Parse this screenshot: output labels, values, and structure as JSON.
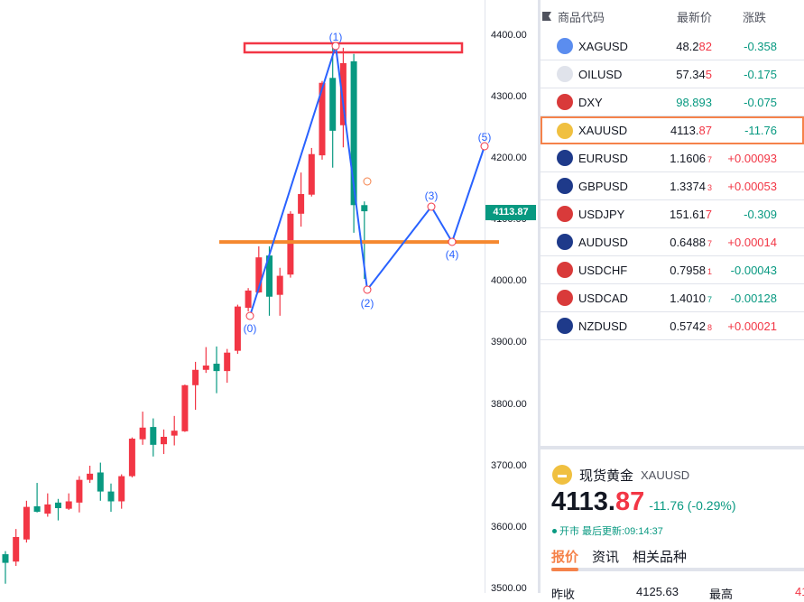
{
  "chart_data": {
    "type": "candlestick",
    "y_ticks": [
      "4400.00",
      "4300.00",
      "4200.00",
      "4100.00",
      "4000.00",
      "3900.00",
      "3800.00",
      "3700.00",
      "3600.00",
      "3500.00"
    ],
    "ylim": [
      3500,
      4400
    ],
    "up_color": "#f23645",
    "down_color": "#089981",
    "candles": [
      [
        3557,
        3543,
        3562,
        3509
      ],
      [
        3545,
        3585,
        3598,
        3538
      ],
      [
        3581,
        3634,
        3644,
        3576
      ],
      [
        3635,
        3626,
        3673,
        3625
      ],
      [
        3623,
        3638,
        3656,
        3618
      ],
      [
        3641,
        3632,
        3647,
        3612
      ],
      [
        3631,
        3643,
        3656,
        3629
      ],
      [
        3641,
        3678,
        3684,
        3625
      ],
      [
        3678,
        3688,
        3701,
        3673
      ],
      [
        3690,
        3659,
        3706,
        3644
      ],
      [
        3659,
        3643,
        3672,
        3626
      ],
      [
        3643,
        3684,
        3687,
        3631
      ],
      [
        3684,
        3745,
        3747,
        3682
      ],
      [
        3744,
        3763,
        3789,
        3735
      ],
      [
        3764,
        3735,
        3778,
        3716
      ],
      [
        3736,
        3748,
        3760,
        3720
      ],
      [
        3750,
        3758,
        3782,
        3734
      ],
      [
        3757,
        3832,
        3833,
        3756
      ],
      [
        3832,
        3857,
        3870,
        3792
      ],
      [
        3857,
        3864,
        3894,
        3852
      ],
      [
        3867,
        3855,
        3895,
        3819
      ],
      [
        3855,
        3885,
        3891,
        3836
      ],
      [
        3888,
        3960,
        3963,
        3883
      ],
      [
        3958,
        3986,
        3990,
        3952
      ],
      [
        3983,
        4040,
        4058,
        3982
      ],
      [
        4043,
        3976,
        4058,
        3945
      ],
      [
        3979,
        4010,
        4023,
        3945
      ],
      [
        4012,
        4111,
        4115,
        4007
      ],
      [
        4111,
        4143,
        4178,
        4090
      ],
      [
        4142,
        4208,
        4218,
        4139
      ],
      [
        4206,
        4324,
        4327,
        4199
      ],
      [
        4332,
        4246,
        4381,
        4186
      ],
      [
        4255,
        4356,
        4381,
        4219
      ],
      [
        4359,
        4125,
        4371,
        4080
      ],
      [
        4125,
        4115,
        4131,
        4005
      ]
    ],
    "current_price": "4113.87",
    "support_level": 4065,
    "wave_labels": [
      "(0)",
      "(1)",
      "(2)",
      "(3)",
      "(4)",
      "(5)"
    ]
  },
  "watchlist": {
    "headers": {
      "symbol": "商品代码",
      "price": "最新价",
      "change": "涨跌"
    },
    "rows": [
      {
        "symbol": "XAGUSD",
        "main": "48.2",
        "tail": "82",
        "small": false,
        "change": "-0.358",
        "dir": "down",
        "icon": "silver-icon",
        "ic": "#5b8def"
      },
      {
        "symbol": "OILUSD",
        "main": "57.34",
        "tail": "5",
        "small": false,
        "change": "-0.175",
        "dir": "down",
        "icon": "oil-icon",
        "ic": "#e0e3eb"
      },
      {
        "symbol": "DXY",
        "main": "98.893",
        "tail": "",
        "small": false,
        "change": "-0.075",
        "dir": "down",
        "icon": "us-flag-icon",
        "ic": "#d93a3a",
        "price_color": "#089981"
      },
      {
        "symbol": "XAUUSD",
        "main": "4113.",
        "tail": "87",
        "small": false,
        "change": "-11.76",
        "dir": "down",
        "icon": "gold-icon",
        "ic": "#f0c040",
        "selected": true
      },
      {
        "symbol": "EURUSD",
        "main": "1.1606",
        "tail": "7",
        "small": true,
        "change": "+0.00093",
        "dir": "up",
        "icon": "eu-flag-icon",
        "ic": "#1e3a8a",
        "cut": "-"
      },
      {
        "symbol": "GBPUSD",
        "main": "1.3374",
        "tail": "3",
        "small": true,
        "change": "+0.00053",
        "dir": "up",
        "icon": "uk-flag-icon",
        "ic": "#1e3a8a",
        "cut": "-"
      },
      {
        "symbol": "USDJPY",
        "main": "151.61",
        "tail": "7",
        "small": false,
        "change": "-0.309",
        "dir": "down",
        "icon": "jp-flag-icon",
        "ic": "#d93a3a"
      },
      {
        "symbol": "AUDUSD",
        "main": "0.6488",
        "tail": "7",
        "small": true,
        "change": "+0.00014",
        "dir": "up",
        "icon": "au-flag-icon",
        "ic": "#1e3a8a",
        "cut": "-"
      },
      {
        "symbol": "USDCHF",
        "main": "0.7958",
        "tail": "1",
        "small": true,
        "change": "-0.00043",
        "dir": "down",
        "icon": "ch-flag-icon",
        "ic": "#d93a3a"
      },
      {
        "symbol": "USDCAD",
        "main": "1.4010",
        "tail": "7",
        "small": true,
        "change": "-0.00128",
        "dir": "down",
        "icon": "ca-flag-icon",
        "ic": "#d93a3a",
        "tail_color": "#089981"
      },
      {
        "symbol": "NZDUSD",
        "main": "0.5742",
        "tail": "8",
        "small": true,
        "change": "+0.00021",
        "dir": "up",
        "icon": "nz-flag-icon",
        "ic": "#1e3a8a",
        "cut": "-"
      }
    ]
  },
  "detail": {
    "name": "现货黄金",
    "symbol": "XAUUSD",
    "price_main": "4113.",
    "price_tail": "87",
    "change": "-11.76 (-0.29%)",
    "status": "开市",
    "updated": "最后更新:09:14:37",
    "tabs": [
      "报价",
      "资讯",
      "相关品种"
    ],
    "prev_close_label": "昨收",
    "prev_close": "4125.63",
    "high_label": "最高",
    "high_cut": "41"
  },
  "colors": {
    "up": "#f23645",
    "down": "#089981",
    "accent": "#f5824a",
    "wave": "#2962ff",
    "support": "#f5882f"
  }
}
